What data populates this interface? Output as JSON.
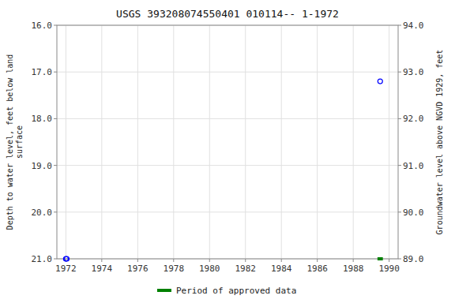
{
  "chart_data": {
    "type": "scatter",
    "title": "USGS 393208074550401 010114-- 1-1972",
    "ylabel": "Depth to water level, feet below land\n surface",
    "y2label": "Groundwater level above NGVD 1929, feet",
    "xlim": [
      1971.5,
      1990.5
    ],
    "xticks": [
      1972,
      1974,
      1976,
      1978,
      1980,
      1982,
      1984,
      1986,
      1988,
      1990
    ],
    "ylim": [
      21.0,
      16.0
    ],
    "yticks": [
      {
        "value": 16.0,
        "label": "16.0"
      },
      {
        "value": 17.0,
        "label": "17.0"
      },
      {
        "value": 18.0,
        "label": "18.0"
      },
      {
        "value": 19.0,
        "label": "19.0"
      },
      {
        "value": 20.0,
        "label": "20.0"
      },
      {
        "value": 21.0,
        "label": "21.0"
      }
    ],
    "y2lim": [
      89.0,
      94.0
    ],
    "y2ticks": [
      {
        "value": 94.0,
        "label": "94.0"
      },
      {
        "value": 93.0,
        "label": "93.0"
      },
      {
        "value": 92.0,
        "label": "92.0"
      },
      {
        "value": 91.0,
        "label": "91.0"
      },
      {
        "value": 90.0,
        "label": "90.0"
      },
      {
        "value": 89.0,
        "label": "89.0"
      }
    ],
    "grid": true,
    "legend": "bottom",
    "series": [
      {
        "type": "scatter",
        "color": "blue",
        "marker": "circle",
        "x": [
          1972.0,
          1972.05,
          1989.5
        ],
        "values": [
          21.0,
          21.0,
          17.2
        ]
      },
      {
        "type": "line",
        "name": "Period of approved data",
        "color": "#008000",
        "line_style": "solid",
        "x": [
          1989.35,
          1989.65
        ],
        "values": [
          21.0,
          21.0
        ]
      }
    ]
  }
}
